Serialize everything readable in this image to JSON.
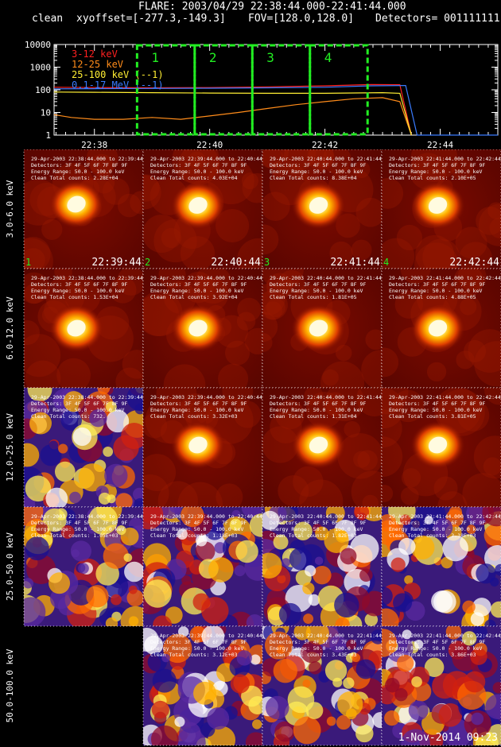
{
  "header": {
    "line1": "FLARE: 2003/04/29 22:38:44.000-22:41:44.000",
    "method": "clean",
    "xyoffset": "xyoffset=[-277.3,-149.3]",
    "fov": "FOV=[128.0,128.0]",
    "detectors": "Detectors= 001111111"
  },
  "chart_data": [
    {
      "type": "line",
      "yscale": "log",
      "ylim": [
        1,
        10000
      ],
      "yticks": [
        "10000",
        "1000",
        "100",
        "10",
        "1"
      ],
      "xticks": [
        "22:38",
        "22:40",
        "22:42",
        "22:44"
      ],
      "xrange_minutes": [
        37.3,
        45.0
      ],
      "series": [
        {
          "name": "3-12 keV",
          "color": "#ff2020",
          "values_note": "",
          "x": [
            37.3,
            38.0,
            39.0,
            40.0,
            41.0,
            42.0,
            42.8,
            43.3,
            43.5
          ],
          "y": [
            130,
            125,
            122,
            125,
            135,
            150,
            170,
            168,
            1
          ]
        },
        {
          "name": "12-25 keV",
          "color": "#ff8c1a",
          "x": [
            37.3,
            37.6,
            38.0,
            38.5,
            39.0,
            39.5,
            40.0,
            40.5,
            41.0,
            41.5,
            42.0,
            42.5,
            43.0,
            43.3,
            43.5
          ],
          "y": [
            8,
            6,
            5,
            5,
            6,
            5,
            7,
            10,
            15,
            22,
            30,
            40,
            45,
            30,
            1
          ]
        },
        {
          "name": "25-100 keV (--1)",
          "color": "#ffee33",
          "x": [
            37.3,
            38.0,
            39.0,
            40.0,
            41.0,
            42.0,
            43.0,
            43.3,
            43.5
          ],
          "y": [
            80,
            78,
            75,
            72,
            70,
            70,
            75,
            70,
            1
          ]
        },
        {
          "name": "0.1-17 MeV (--1)",
          "color": "#3a7bff",
          "x": [
            37.3,
            38.0,
            39.0,
            40.0,
            41.0,
            42.0,
            42.8,
            43.4,
            43.6,
            45.0
          ],
          "y": [
            110,
            112,
            115,
            118,
            122,
            130,
            150,
            155,
            1,
            1
          ]
        }
      ],
      "intervals": [
        {
          "label": "1",
          "x0": 38.74,
          "x1": 39.74
        },
        {
          "label": "2",
          "x0": 39.74,
          "x1": 40.74
        },
        {
          "label": "3",
          "x0": 40.74,
          "x1": 41.74
        },
        {
          "label": "4",
          "x0": 41.74,
          "x1": 42.74
        }
      ]
    },
    {
      "type": "heatmap",
      "rows": [
        {
          "label": "3.0-6.0 keV",
          "cells": [
            {
              "line1": "29-Apr-2003 22:38:44.000 to 22:39:44",
              "counts": "Clean    Total counts: 2.28E+04",
              "index": "1",
              "time": "22:39:44"
            },
            {
              "line1": "29-Apr-2003 22:39:44.000 to 22:40:44",
              "counts": "Clean    Total counts: 4.03E+04",
              "index": "2",
              "time": "22:40:44"
            },
            {
              "line1": "29-Apr-2003 22:40:44.000 to 22:41:44",
              "counts": "Clean    Total counts: 8.38E+04",
              "index": "3",
              "time": "22:41:44"
            },
            {
              "line1": "29-Apr-2003 22:41:44.000 to 22:42:44",
              "counts": "Clean    Total counts: 2.10E+05",
              "index": "4",
              "time": "22:42:44"
            }
          ]
        },
        {
          "label": "6.0-12.0 keV",
          "cells": [
            {
              "line1": "29-Apr-2003 22:38:44.000 to 22:39:44",
              "counts": "Clean    Total counts: 1.53E+04"
            },
            {
              "line1": "29-Apr-2003 22:39:44.000 to 22:40:44",
              "counts": "Clean    Total counts: 3.92E+04"
            },
            {
              "line1": "29-Apr-2003 22:40:44.000 to 22:41:44",
              "counts": "Clean    Total counts: 1.81E+05"
            },
            {
              "line1": "29-Apr-2003 22:41:44.000 to 22:42:44",
              "counts": "Clean    Total counts: 4.88E+05"
            }
          ]
        },
        {
          "label": "12.0-25.0 keV",
          "cells": [
            {
              "line1": "29-Apr-2003 22:38:44.000 to 22:39:44",
              "counts": "Clean    Total counts: 732."
            },
            {
              "line1": "29-Apr-2003 22:39:44.000 to 22:40:44",
              "counts": "Clean    Total counts: 3.32E+03"
            },
            {
              "line1": "29-Apr-2003 22:40:44.000 to 22:41:44",
              "counts": "Clean    Total counts: 1.31E+04"
            },
            {
              "line1": "29-Apr-2003 22:41:44.000 to 22:42:44",
              "counts": "Clean    Total counts: 3.81E+05"
            }
          ]
        },
        {
          "label": "25.0-50.0 keV",
          "cells": [
            {
              "line1": "29-Apr-2003 22:38:44.000 to 22:39:44",
              "counts": "Clean    Total counts: 1.05E+03"
            },
            {
              "line1": "29-Apr-2003 22:39:44.000 to 22:40:44",
              "counts": "Clean    Total counts: 1.18E+03"
            },
            {
              "line1": "29-Apr-2003 22:40:44.000 to 22:41:44",
              "counts": "Clean    Total counts: 1.82E+03"
            },
            {
              "line1": "29-Apr-2003 22:41:44.000 to 22:42:44",
              "counts": "Clean    Total counts: 2.18E+03"
            }
          ]
        },
        {
          "label": "50.0-100.0 keV",
          "cells": [
            null,
            {
              "line1": "29-Apr-2003 22:39:44.000 to 22:40:44",
              "counts": "Clean    Total counts: 3.12E+03"
            },
            {
              "line1": "29-Apr-2003 22:40:44.000 to 22:41:44",
              "counts": "Clean    Total counts: 3.43E+03"
            },
            {
              "line1": "29-Apr-2003 22:41:44.000 to 22:42:44",
              "counts": "Clean    Total counts: 3.86E+03"
            }
          ]
        }
      ],
      "common": {
        "detectors": "Detectors: 3F 4F 5F 6F 7F 8F 9F",
        "energy": "Energy Range: 50.0 - 100.0 keV"
      }
    }
  ],
  "footer": {
    "date": "1-Nov-2014 09:23"
  }
}
